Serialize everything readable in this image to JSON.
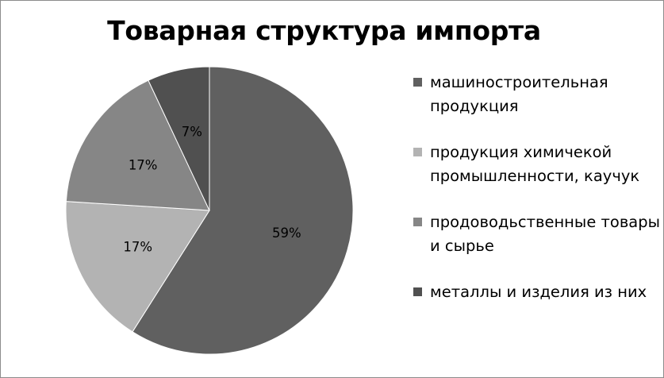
{
  "chart_data": {
    "type": "pie",
    "title": "Товарная структура импорта",
    "legend_position": "right",
    "slices": [
      {
        "label": "машиностроительная продукция",
        "value": 59,
        "display": "59%",
        "color": "#606060"
      },
      {
        "label": "продукция химичекой промышленности, каучук",
        "value": 17,
        "display": "17%",
        "color": "#b3b3b3"
      },
      {
        "label": "продоводьственные товары и сырье",
        "value": 17,
        "display": "17%",
        "color": "#868686"
      },
      {
        "label": "металлы и изделия из них",
        "value": 7,
        "display": "7%",
        "color": "#505050"
      }
    ]
  }
}
